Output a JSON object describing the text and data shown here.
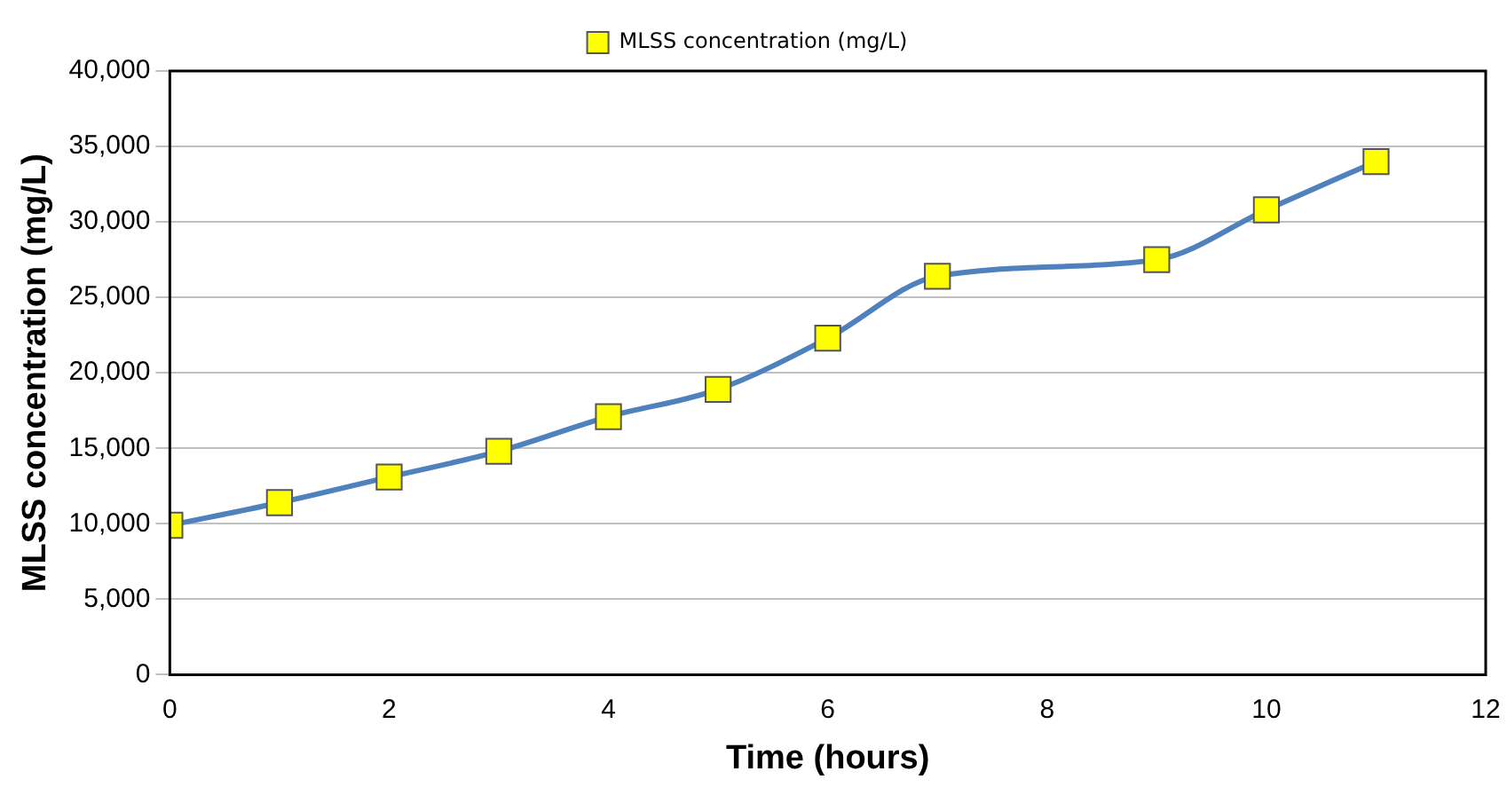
{
  "chart_data": {
    "type": "line",
    "xlabel": "Time (hours)",
    "ylabel": "MLSS concentration (mg/L)",
    "x": [
      0,
      1,
      2,
      3,
      4,
      5,
      6,
      7,
      9,
      10,
      11
    ],
    "series": [
      {
        "name": "MLSS concentration (mg/L)",
        "color": "#4f81bd",
        "values": [
          9900,
          11400,
          13100,
          14800,
          17100,
          18900,
          22300,
          26400,
          27500,
          30800,
          34000
        ]
      }
    ],
    "xlim": [
      0,
      12
    ],
    "xticks": [
      0,
      2,
      4,
      6,
      8,
      10,
      12
    ],
    "ylim": [
      0,
      40000
    ],
    "yticks": [
      0,
      {
        "value": 5000,
        "label": "5,000"
      },
      {
        "value": 10000,
        "label": "10,000"
      },
      {
        "value": 15000,
        "label": "15,000"
      },
      {
        "value": 20000,
        "label": "20,000"
      },
      {
        "value": 25000,
        "label": "25,000"
      },
      {
        "value": 30000,
        "label": "30,000"
      },
      {
        "value": 35000,
        "label": "35,000"
      },
      {
        "value": 40000,
        "label": "40,000"
      }
    ],
    "grid": "y",
    "legend": "top",
    "marker": "square",
    "line_style": "solid"
  }
}
